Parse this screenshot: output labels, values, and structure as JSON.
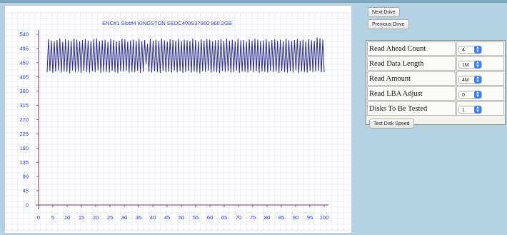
{
  "chart_data": {
    "type": "line",
    "title": "ENC#1 Slot#4 KINGSTON SEDC400S37960 960.2GB",
    "xlabel": "",
    "ylabel": "",
    "xlim": [
      0,
      100
    ],
    "ylim": [
      0,
      540
    ],
    "x_ticks": [
      0,
      5,
      10,
      15,
      20,
      25,
      30,
      35,
      40,
      45,
      50,
      55,
      60,
      65,
      70,
      75,
      80,
      85,
      90,
      95,
      100
    ],
    "y_ticks": [
      0,
      45,
      90,
      135,
      180,
      225,
      270,
      315,
      360,
      405,
      450,
      495,
      540
    ],
    "grid": true,
    "line_color": "#2a2a8c",
    "series": [
      {
        "peaks": [
          525,
          520,
          518,
          522,
          527,
          516,
          524,
          521,
          519,
          526,
          523,
          517,
          522,
          525,
          520,
          518,
          524,
          527,
          519,
          521,
          523,
          516,
          525,
          522,
          518,
          520,
          526,
          524,
          517,
          521,
          523,
          519,
          525,
          518,
          522,
          510,
          524,
          520,
          523,
          519,
          526,
          521,
          517,
          524,
          522,
          520,
          525,
          518,
          523,
          521,
          519,
          526,
          522,
          517,
          524,
          520,
          525,
          523,
          518,
          521,
          522,
          524,
          519,
          526,
          520,
          523,
          517,
          525,
          521,
          522,
          518,
          524,
          520,
          526,
          523,
          519,
          521,
          525,
          517,
          522,
          524,
          520,
          523,
          518,
          526,
          521,
          519,
          522,
          525,
          520,
          523,
          517,
          524,
          521,
          519,
          530,
          527,
          523
        ],
        "troughs": [
          420,
          424,
          418,
          422,
          426,
          419,
          423,
          421,
          417,
          425,
          420,
          422,
          418,
          424,
          421,
          419,
          423,
          420,
          426,
          418,
          422,
          421,
          419,
          424,
          420,
          417,
          423,
          422,
          425,
          419,
          421,
          420,
          424,
          418,
          422,
          446,
          421,
          419,
          423,
          420,
          418,
          424,
          421,
          422,
          419,
          425,
          420,
          423,
          418,
          421,
          424,
          419,
          422,
          420,
          417,
          423,
          421,
          425,
          419,
          422,
          420,
          418,
          424,
          421,
          423,
          419,
          420,
          425,
          418,
          422,
          421,
          419,
          424,
          420,
          423,
          418,
          422,
          421,
          419,
          425,
          420,
          422,
          418,
          424,
          421,
          419,
          423,
          420,
          426,
          418,
          422,
          421,
          419,
          424,
          420,
          422,
          424,
          420
        ]
      }
    ]
  },
  "buttons": {
    "next_drive": "Next Drive",
    "previous_drive": "Previous Drive",
    "test_disk_speed": "Test Disk Speed"
  },
  "settings": [
    {
      "label": "Read Ahead Count",
      "value": "4"
    },
    {
      "label": "Read Data Length",
      "value": "1M"
    },
    {
      "label": "Read Amount",
      "value": "4M"
    },
    {
      "label": "Read LBA Adjust",
      "value": "0"
    },
    {
      "label": "Disks To Be Tested",
      "value": "1"
    }
  ],
  "colors": {
    "background": "#b5d2e3",
    "grid": "#d7d7e8",
    "axis": "#6b3a6b",
    "tick_label": "#2b3fe0",
    "title": "#2b3fe0"
  }
}
